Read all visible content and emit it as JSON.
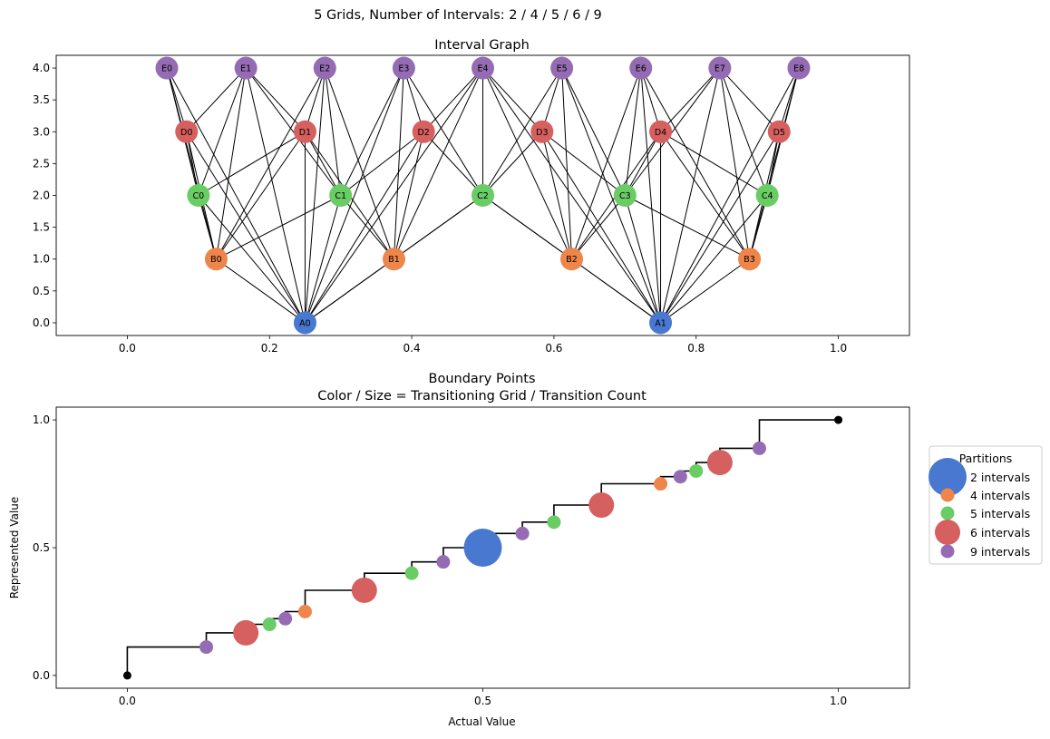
{
  "suptitle": "5 Grids, Number of Intervals: 2 / 4 / 5 / 6 / 9",
  "colors": {
    "2": "#4878d0",
    "4": "#ee854a",
    "5": "#6acc64",
    "6": "#d65f5f",
    "9": "#956cb4",
    "edge": "#000000",
    "endpoint": "#000000"
  },
  "chart_data": [
    {
      "type": "network",
      "title": "Interval Graph",
      "xlim": [
        -0.1,
        1.1
      ],
      "ylim": [
        -0.2,
        4.2
      ],
      "xticks": [
        "0.0",
        "0.2",
        "0.4",
        "0.6",
        "0.8",
        "1.0"
      ],
      "yticks": [
        "0.0",
        "0.5",
        "1.0",
        "1.5",
        "2.0",
        "2.5",
        "3.0",
        "3.5",
        "4.0"
      ],
      "levels": [
        {
          "prefix": "A",
          "intervals": 2,
          "y": 0
        },
        {
          "prefix": "B",
          "intervals": 4,
          "y": 1
        },
        {
          "prefix": "C",
          "intervals": 5,
          "y": 2
        },
        {
          "prefix": "D",
          "intervals": 6,
          "y": 3
        },
        {
          "prefix": "E",
          "intervals": 9,
          "y": 4
        }
      ],
      "nodes": [
        {
          "id": "A0",
          "x": 0.25,
          "y": 0
        },
        {
          "id": "A1",
          "x": 0.75,
          "y": 0
        },
        {
          "id": "B0",
          "x": 0.125,
          "y": 1
        },
        {
          "id": "B1",
          "x": 0.375,
          "y": 1
        },
        {
          "id": "B2",
          "x": 0.625,
          "y": 1
        },
        {
          "id": "B3",
          "x": 0.875,
          "y": 1
        },
        {
          "id": "C0",
          "x": 0.1,
          "y": 2
        },
        {
          "id": "C1",
          "x": 0.3,
          "y": 2
        },
        {
          "id": "C2",
          "x": 0.5,
          "y": 2
        },
        {
          "id": "C3",
          "x": 0.7,
          "y": 2
        },
        {
          "id": "C4",
          "x": 0.9,
          "y": 2
        },
        {
          "id": "D0",
          "x": 0.0833,
          "y": 3
        },
        {
          "id": "D1",
          "x": 0.25,
          "y": 3
        },
        {
          "id": "D2",
          "x": 0.4167,
          "y": 3
        },
        {
          "id": "D3",
          "x": 0.5833,
          "y": 3
        },
        {
          "id": "D4",
          "x": 0.75,
          "y": 3
        },
        {
          "id": "D5",
          "x": 0.9167,
          "y": 3
        },
        {
          "id": "E0",
          "x": 0.0556,
          "y": 4
        },
        {
          "id": "E1",
          "x": 0.1667,
          "y": 4
        },
        {
          "id": "E2",
          "x": 0.2778,
          "y": 4
        },
        {
          "id": "E3",
          "x": 0.3889,
          "y": 4
        },
        {
          "id": "E4",
          "x": 0.5,
          "y": 4
        },
        {
          "id": "E5",
          "x": 0.6111,
          "y": 4
        },
        {
          "id": "E6",
          "x": 0.7222,
          "y": 4
        },
        {
          "id": "E7",
          "x": 0.8333,
          "y": 4
        },
        {
          "id": "E8",
          "x": 0.9444,
          "y": 4
        }
      ],
      "edge_rule": "nodes of different levels whose intervals overlap are connected"
    },
    {
      "type": "scatter",
      "title": "Boundary Points",
      "subtitle": "Color / Size = Transitioning Grid / Transition Count",
      "xlabel": "Actual Value",
      "ylabel": "Represented Value",
      "xlim": [
        -0.1,
        1.1
      ],
      "ylim": [
        -0.05,
        1.05
      ],
      "xticks": [
        "0.0",
        "0.5",
        "1.0"
      ],
      "yticks": [
        "0.0",
        "0.5",
        "1.0"
      ],
      "legend_title": "Partitions",
      "legend_position": "right",
      "series": [
        {
          "name": "2 intervals",
          "intervals": 2,
          "x": [
            0.5
          ],
          "y": [
            0.5
          ]
        },
        {
          "name": "4 intervals",
          "intervals": 4,
          "x": [
            0.25,
            0.75
          ],
          "y": [
            0.25,
            0.75
          ]
        },
        {
          "name": "5 intervals",
          "intervals": 5,
          "x": [
            0.2,
            0.4,
            0.6,
            0.8
          ],
          "y": [
            0.2,
            0.4,
            0.6,
            0.8
          ]
        },
        {
          "name": "6 intervals",
          "intervals": 6,
          "x": [
            0.1667,
            0.3333,
            0.6667,
            0.8333
          ],
          "y": [
            0.1667,
            0.3333,
            0.6667,
            0.8333
          ]
        },
        {
          "name": "9 intervals",
          "intervals": 9,
          "x": [
            0.1111,
            0.2222,
            0.4444,
            0.5556,
            0.7778,
            0.8889
          ],
          "y": [
            0.1111,
            0.2222,
            0.4444,
            0.5556,
            0.7778,
            0.8889
          ]
        }
      ],
      "endpoints": {
        "x": [
          0,
          1
        ],
        "y": [
          0,
          1
        ]
      },
      "step_line": {
        "x": [
          0,
          0,
          0.1111,
          0.1111,
          0.1667,
          0.1667,
          0.2,
          0.2,
          0.2222,
          0.2222,
          0.25,
          0.25,
          0.3333,
          0.3333,
          0.4,
          0.4,
          0.4444,
          0.4444,
          0.5,
          0.5,
          0.5556,
          0.5556,
          0.6,
          0.6,
          0.6667,
          0.6667,
          0.75,
          0.75,
          0.7778,
          0.7778,
          0.8,
          0.8,
          0.8333,
          0.8333,
          0.8889,
          0.8889,
          1
        ],
        "y": [
          0,
          0.1111,
          0.1111,
          0.1667,
          0.1667,
          0.2,
          0.2,
          0.2222,
          0.2222,
          0.25,
          0.25,
          0.3333,
          0.3333,
          0.4,
          0.4,
          0.4444,
          0.4444,
          0.5,
          0.5,
          0.5556,
          0.5556,
          0.6,
          0.6,
          0.6667,
          0.6667,
          0.75,
          0.75,
          0.7778,
          0.7778,
          0.8,
          0.8,
          0.8333,
          0.8333,
          0.8889,
          0.8889,
          1,
          1
        ]
      }
    }
  ]
}
